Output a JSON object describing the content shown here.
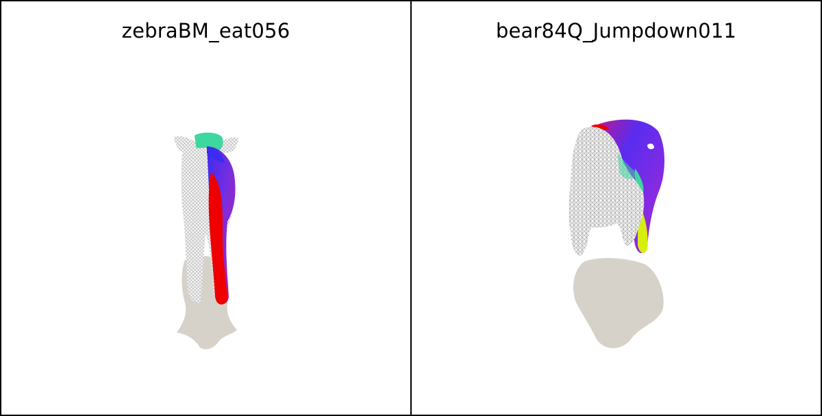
{
  "panels": [
    {
      "title": "zebraBM_eat056",
      "subject": "zebra"
    },
    {
      "title": "bear84Q_Jumpdown011",
      "subject": "bear"
    }
  ],
  "colors": {
    "shadow": "#d6d2ca",
    "mesh_wire": "#9a9a9a",
    "mesh_fill": "#f4f4f4",
    "red": "#ee0000",
    "blue": "#3a2cf0",
    "purple": "#8a2be0",
    "green": "#3fd7a0",
    "yellow": "#d8ee10"
  }
}
